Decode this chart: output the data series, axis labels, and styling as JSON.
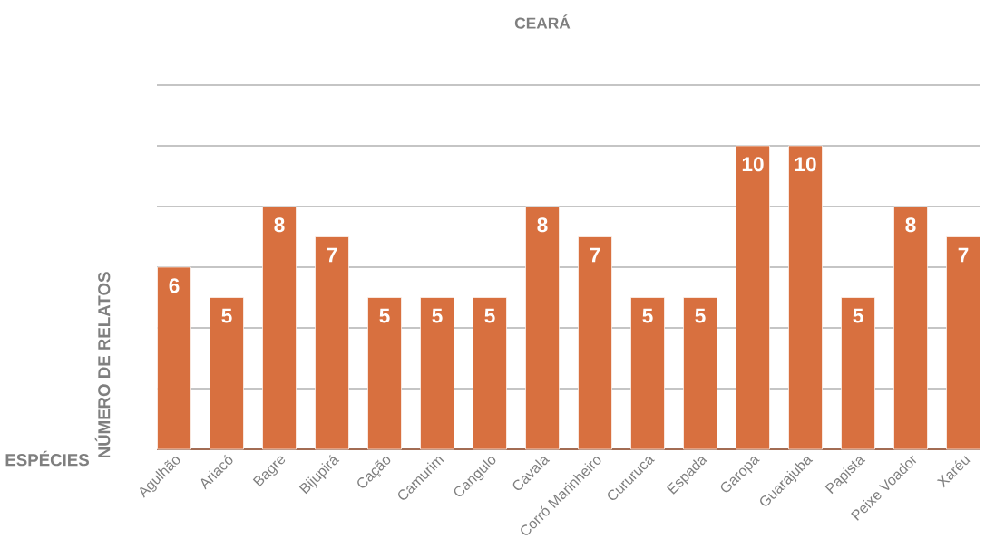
{
  "chart_data": {
    "type": "bar",
    "title": "CEARÁ",
    "xlabel": "ESPÉCIES",
    "ylabel": "NÚMERO DE RELATOS",
    "categories": [
      "Agulhão",
      "Ariacó",
      "Bagre",
      "Bijupirá",
      "Cação",
      "Camurim",
      "Cangulo",
      "Cavala",
      "Corró Marinheiro",
      "Cururuca",
      "Espada",
      "Garopa",
      "Guarajuba",
      "Papista",
      "Peixe Voador",
      "Xaréu"
    ],
    "values": [
      6,
      5,
      8,
      7,
      5,
      5,
      5,
      8,
      7,
      5,
      5,
      10,
      10,
      5,
      8,
      7
    ],
    "color": "#d8703f",
    "grid": "y",
    "tick_labels": "x",
    "data_labels": true
  }
}
